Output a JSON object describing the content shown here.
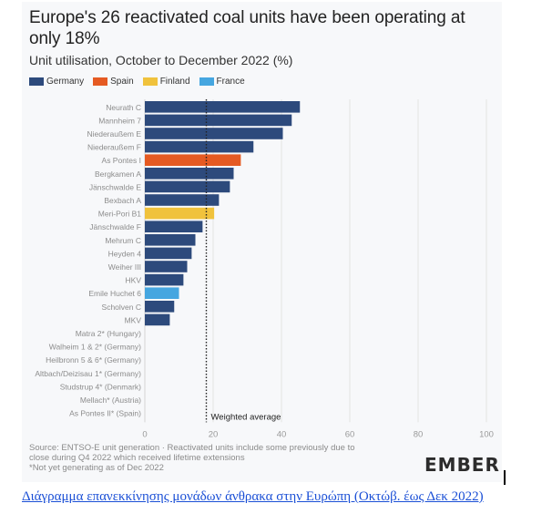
{
  "chart_data": {
    "type": "bar",
    "orientation": "horizontal",
    "title": "Europe's 26 reactivated coal units have been operating at only 18%",
    "subtitle": "Unit utilisation, October to December 2022 (%)",
    "xlabel": "",
    "ylabel": "",
    "xlim": [
      0,
      100
    ],
    "x_ticks": [
      "0",
      "20",
      "40",
      "60",
      "80",
      "100"
    ],
    "grid": true,
    "legend_position": "top-left",
    "legend": [
      {
        "name": "Germany",
        "color": "#2d4a7c"
      },
      {
        "name": "Spain",
        "color": "#e55a22"
      },
      {
        "name": "Finland",
        "color": "#f0c23c"
      },
      {
        "name": "France",
        "color": "#45a6e0"
      }
    ],
    "categories": [
      "Neurath C",
      "Mannheim 7",
      "Niederaußem E",
      "Niederaußem F",
      "As Pontes I",
      "Bergkamen A",
      "Jänschwalde E",
      "Bexbach A",
      "Meri-Pori B1",
      "Jänschwalde F",
      "Mehrum C",
      "Heyden 4",
      "Weiher III",
      "HKV",
      "Emile Huchet 6",
      "Scholven C",
      "MKV",
      "Matra 2* (Hungary)",
      "Walheim 1 & 2* (Germany)",
      "Heilbronn 5 & 6* (Germany)",
      "Altbach/Deizisau 1* (Germany)",
      "Studstrup 4* (Denmark)",
      "Mellach* (Austria)",
      "As Pontes II* (Spain)"
    ],
    "values": [
      45.4,
      43.0,
      40.4,
      31.8,
      28.1,
      26.0,
      24.9,
      21.7,
      20.3,
      16.9,
      14.8,
      13.7,
      12.4,
      11.3,
      10.0,
      8.6,
      7.3,
      0,
      0,
      0,
      0,
      0,
      0,
      0
    ],
    "countries": [
      "Germany",
      "Germany",
      "Germany",
      "Germany",
      "Spain",
      "Germany",
      "Germany",
      "Germany",
      "Finland",
      "Germany",
      "Germany",
      "Germany",
      "Germany",
      "Germany",
      "France",
      "Germany",
      "Germany",
      "",
      "",
      "",
      "",
      "",
      "",
      ""
    ],
    "reference_line": {
      "value": 18,
      "label": "Weighted average",
      "style": "dotted"
    }
  },
  "footer": {
    "source_line1": "Source: ENTSO-E unit generation · Reactivated units include some previously due to",
    "source_line2": "close during Q4 2022 which received lifetime extensions",
    "note": "*Not yet generating as of Dec 2022"
  },
  "logo": {
    "text": "EMBER"
  },
  "caption": {
    "text": "Διάγραμμα επανεκκίνησης μονάδων άνθρακα στην Ευρώπη (Οκτώβ. έως Δεκ 2022)"
  }
}
